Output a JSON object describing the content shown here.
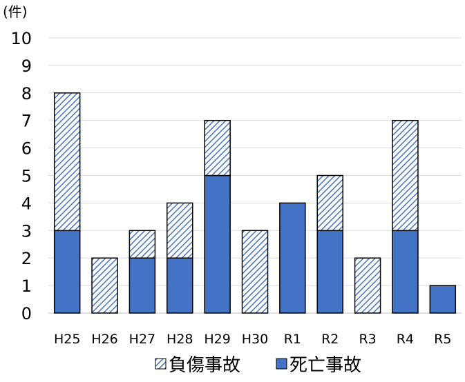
{
  "chart_data": {
    "type": "bar",
    "stacked": true,
    "unit_label": "(件)",
    "categories": [
      "H25",
      "H26",
      "H27",
      "H28",
      "H29",
      "H30",
      "R1",
      "R2",
      "R3",
      "R4",
      "R5"
    ],
    "series": [
      {
        "name": "死亡事故",
        "values": [
          3,
          0,
          2,
          2,
          5,
          0,
          4,
          3,
          0,
          3,
          1
        ],
        "color": "#4472C4",
        "pattern": "solid"
      },
      {
        "name": "負傷事故",
        "values": [
          5,
          2,
          1,
          2,
          2,
          3,
          0,
          2,
          2,
          4,
          0
        ],
        "color": "#4472C4",
        "pattern": "diagonal-hatch"
      }
    ],
    "legend_order": [
      "負傷事故",
      "死亡事故"
    ],
    "yticks": [
      "0",
      "1",
      "2",
      "3",
      "4",
      "5",
      "6",
      "7",
      "8",
      "9",
      "10"
    ],
    "ylim": [
      0,
      10
    ],
    "grid": true,
    "legend_position": "bottom"
  }
}
